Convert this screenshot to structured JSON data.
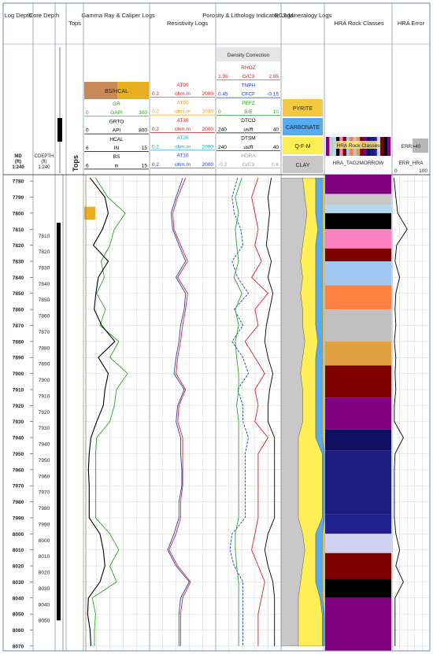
{
  "tracks": {
    "log_depth": "Log Depth",
    "core_depth": "Core Depth",
    "tops": "Tops",
    "gamma": "Gamma Ray & Caliper Logs",
    "resistivity": "Resistivity Logs",
    "porosity": "Porosity & Lithology Indicator Logs",
    "ecs": "ECS Mineralogy Logs",
    "hra": "HRA Rock Classes",
    "hra_error": "HRA Error"
  },
  "depth_header": {
    "md": "MD",
    "md_unit": "(ft)",
    "md_scale": "1:240",
    "cdepth": "CDEPTH",
    "cdepth_unit": "(ft)",
    "cdepth_scale": "1:240",
    "tops_vertical": "Tops"
  },
  "gamma_header": {
    "bs_hcal": "BS/HCAL",
    "rows": [
      {
        "name": "GR",
        "left": "",
        "unit": "",
        "right": "",
        "color": "#2aa52a"
      },
      {
        "name": "",
        "left": "0",
        "unit": "GAPI",
        "right": "300",
        "color": "#2aa52a"
      },
      {
        "name": "GRTO",
        "left": "",
        "unit": "",
        "right": "",
        "color": "#000000"
      },
      {
        "name": "",
        "left": "0",
        "unit": "API",
        "right": "800",
        "color": "#000000"
      },
      {
        "name": "HCAL",
        "left": "",
        "unit": "",
        "right": "",
        "color": "#000000"
      },
      {
        "name": "",
        "left": "6",
        "unit": "IN",
        "right": "15",
        "color": "#000000"
      },
      {
        "name": "BS",
        "left": "",
        "unit": "",
        "right": "",
        "color": "#000000"
      },
      {
        "name": "",
        "left": "6",
        "unit": "in",
        "right": "15",
        "color": "#000000"
      }
    ]
  },
  "resistivity_header": {
    "rows": [
      {
        "name": "AT90",
        "left": "",
        "unit": "",
        "right": "",
        "color": "#e02020"
      },
      {
        "name": "",
        "left": "0.2",
        "unit": "ohm.m",
        "right": "2000",
        "color": "#e02020"
      },
      {
        "name": "AT60",
        "left": "",
        "unit": "",
        "right": "",
        "color": "#f0a020"
      },
      {
        "name": "",
        "left": "0.2",
        "unit": "ohm.m",
        "right": "2000",
        "color": "#f0a020"
      },
      {
        "name": "AT30",
        "left": "",
        "unit": "",
        "right": "",
        "color": "#c02020"
      },
      {
        "name": "",
        "left": "0.2",
        "unit": "ohm.m",
        "right": "2000",
        "color": "#c02020"
      },
      {
        "name": "AT20",
        "left": "",
        "unit": "",
        "right": "",
        "color": "#20a0d0"
      },
      {
        "name": "",
        "left": "0.2",
        "unit": "ohm.m",
        "right": "2000",
        "color": "#20a0d0"
      },
      {
        "name": "AT10",
        "left": "",
        "unit": "",
        "right": "",
        "color": "#2040c0"
      },
      {
        "name": "",
        "left": "0.2",
        "unit": "ohm.m",
        "right": "2000",
        "color": "#2040c0"
      }
    ]
  },
  "porosity_header": {
    "density_correction": "Density Correction",
    "rows": [
      {
        "name": "RHOZ",
        "left": "",
        "unit": "",
        "right": "",
        "color": "#e02020"
      },
      {
        "name": "",
        "left": "1.95",
        "unit": "G/C3",
        "right": "2.95",
        "color": "#e02020"
      },
      {
        "name": "TNPH",
        "left": "",
        "unit": "",
        "right": "",
        "color": "#2040c0"
      },
      {
        "name": "",
        "left": "0.45",
        "unit": "CFCF",
        "right": "-0.15",
        "color": "#2040c0"
      },
      {
        "name": "PEFZ",
        "left": "",
        "unit": "",
        "right": "",
        "color": "#2aa52a"
      },
      {
        "name": "",
        "left": "0",
        "unit": "B/E",
        "right": "10",
        "color": "#2aa52a"
      },
      {
        "name": "DTCO",
        "left": "",
        "unit": "",
        "right": "",
        "color": "#000000"
      },
      {
        "name": "",
        "left": "240",
        "unit": "us/ft",
        "right": "40",
        "color": "#000000"
      },
      {
        "name": "DTSM",
        "left": "",
        "unit": "",
        "right": "",
        "color": "#000000"
      },
      {
        "name": "",
        "left": "240",
        "unit": "us/ft",
        "right": "40",
        "color": "#000000"
      },
      {
        "name": "HDRA",
        "left": "",
        "unit": "",
        "right": "",
        "color": "#999999"
      },
      {
        "name": "",
        "left": "-0.2",
        "unit": "G/C3",
        "right": "0.6",
        "color": "#999999"
      }
    ]
  },
  "ecs_header": {
    "pyrite": "PYRITE",
    "carbonate": "CARBONATE",
    "qfm": "Q-F-M",
    "clay": "CLAY"
  },
  "hra_header": {
    "legend_label": "HRA Rock Classes",
    "curve": "HRA_TAG2MORROW"
  },
  "hra_error_header": {
    "flag": "ERR>40",
    "curve": "ERR_HRA",
    "left": "0",
    "right": "100"
  },
  "colors": {
    "gr": "#2aa52a",
    "grto": "#000000",
    "at90": "#e02020",
    "at60": "#f0a020",
    "at30": "#c02020",
    "at20": "#20a0d0",
    "at10": "#2040c0",
    "rhoz": "#e02020",
    "tnph": "#2040c0",
    "pefz": "#2aa52a",
    "pyrite": "#f5c842",
    "carbonate": "#5aaaf0",
    "qfm": "#ffee55",
    "clay": "#c8c8c8",
    "caliper_fill": "#e8b020"
  },
  "chart_data": {
    "type": "line",
    "depth_axis": {
      "label": "MD (ft)",
      "range": [
        7776,
        8073
      ],
      "ticks": [
        7780,
        7790,
        7800,
        7810,
        7820,
        7830,
        7840,
        7850,
        7860,
        7870,
        7880,
        7890,
        7900,
        7910,
        7920,
        7930,
        7940,
        7950,
        7960,
        7970,
        7980,
        7990,
        8000,
        8010,
        8020,
        8030,
        8040,
        8050,
        8060,
        8070
      ]
    },
    "core_depth_ticks": [
      7810,
      7820,
      7830,
      7840,
      7850,
      7860,
      7870,
      7880,
      7890,
      7900,
      7910,
      7920,
      7930,
      7940,
      7950,
      7960,
      7970,
      7980,
      7990,
      8000,
      8010,
      8020,
      8030,
      8040,
      8050
    ],
    "depth": [
      7778,
      7790,
      7800,
      7810,
      7820,
      7830,
      7840,
      7850,
      7860,
      7870,
      7880,
      7890,
      7900,
      7910,
      7920,
      7930,
      7940,
      7950,
      7960,
      7970,
      7980,
      7990,
      8000,
      8010,
      8020,
      8030,
      8040,
      8050,
      8060,
      8070
    ],
    "series": [
      {
        "name": "GR",
        "track": "gamma",
        "scale": [
          0,
          300
        ],
        "values": [
          55,
          110,
          190,
          140,
          120,
          80,
          95,
          60,
          100,
          75,
          160,
          120,
          200,
          150,
          140,
          120,
          60,
          55,
          55,
          55,
          55,
          55,
          120,
          160,
          120,
          150,
          40,
          55,
          50,
          50
        ]
      },
      {
        "name": "GRTO",
        "track": "gamma",
        "scale": [
          0,
          800
        ],
        "values": [
          80,
          260,
          300,
          230,
          120,
          300,
          180,
          150,
          130,
          220,
          380,
          180,
          300,
          260,
          240,
          160,
          90,
          70,
          60,
          70,
          70,
          70,
          200,
          240,
          260,
          200,
          60,
          50,
          80,
          90
        ]
      },
      {
        "name": "AT90",
        "track": "resistivity",
        "scale": [
          0.2,
          2000
        ],
        "log": true,
        "values": [
          30,
          10,
          5,
          6,
          15,
          40,
          10,
          40,
          30,
          20,
          15,
          10,
          8,
          30,
          12,
          10,
          20,
          20,
          20,
          20,
          15,
          15,
          8,
          3,
          10,
          60,
          20,
          15,
          15,
          15
        ]
      },
      {
        "name": "AT10",
        "track": "resistivity",
        "scale": [
          0.2,
          2000
        ],
        "log": true,
        "values": [
          20,
          8,
          4,
          5,
          12,
          30,
          8,
          30,
          25,
          15,
          12,
          8,
          6,
          25,
          10,
          8,
          15,
          15,
          18,
          18,
          12,
          12,
          6,
          2.5,
          8,
          50,
          15,
          12,
          12,
          12
        ]
      },
      {
        "name": "RHOZ",
        "track": "porosity",
        "scale": [
          1.95,
          2.95
        ],
        "values": [
          2.6,
          2.5,
          2.55,
          2.6,
          2.55,
          2.65,
          2.5,
          2.75,
          2.55,
          2.6,
          2.4,
          2.55,
          2.7,
          2.55,
          2.6,
          2.55,
          2.75,
          2.6,
          2.6,
          2.6,
          2.6,
          2.6,
          2.55,
          2.5,
          2.6,
          2.7,
          2.65,
          2.6,
          2.6,
          2.6
        ]
      },
      {
        "name": "TNPH",
        "track": "porosity",
        "scale": [
          0.45,
          -0.15
        ],
        "values": [
          0.25,
          0.3,
          0.28,
          0.22,
          0.2,
          0.3,
          0.25,
          0.15,
          0.28,
          0.2,
          0.3,
          0.2,
          0.15,
          0.25,
          0.2,
          0.2,
          0.15,
          0.18,
          0.18,
          0.18,
          0.18,
          0.18,
          0.3,
          0.32,
          0.28,
          0.2,
          0.2,
          0.2,
          0.2,
          0.2
        ]
      },
      {
        "name": "PEFZ",
        "track": "porosity",
        "scale": [
          0,
          10
        ],
        "values": [
          4,
          3,
          3.5,
          3,
          3.2,
          3.5,
          2.8,
          4,
          3,
          3.5,
          3,
          3.2,
          3.5,
          3.5,
          3.2,
          3.5,
          3.5,
          3.5,
          3.5,
          3.5,
          3.5,
          3.5,
          3,
          3,
          3.2,
          3.5,
          3.5,
          3.5,
          3.5,
          3.5
        ]
      },
      {
        "name": "DTCO",
        "track": "porosity",
        "scale": [
          240,
          40
        ],
        "values": [
          70,
          80,
          75,
          80,
          85,
          70,
          80,
          65,
          75,
          85,
          90,
          80,
          65,
          75,
          80,
          80,
          60,
          60,
          60,
          60,
          60,
          60,
          80,
          90,
          80,
          65,
          60,
          60,
          60,
          60
        ]
      },
      {
        "name": "ERR_HRA",
        "track": "hra_error",
        "scale": [
          0,
          100
        ],
        "values": [
          5,
          10,
          15,
          40,
          12,
          8,
          20,
          10,
          8,
          10,
          6,
          10,
          8,
          10,
          6,
          6,
          30,
          8,
          6,
          6,
          6,
          6,
          10,
          20,
          10,
          30,
          8,
          8,
          8,
          8
        ]
      }
    ],
    "hra_classes": [
      {
        "top": 7776,
        "base": 7788,
        "color": "#800080"
      },
      {
        "top": 7788,
        "base": 7795,
        "color": "#c8c8c8"
      },
      {
        "top": 7795,
        "base": 7800,
        "color": "#b0d8f0"
      },
      {
        "top": 7800,
        "base": 7810,
        "color": "#000000"
      },
      {
        "top": 7810,
        "base": 7822,
        "color": "#ff80c0"
      },
      {
        "top": 7822,
        "base": 7830,
        "color": "#800000"
      },
      {
        "top": 7830,
        "base": 7845,
        "color": "#a0c8f0"
      },
      {
        "top": 7845,
        "base": 7860,
        "color": "#ff8040"
      },
      {
        "top": 7860,
        "base": 7880,
        "color": "#c0c0c0"
      },
      {
        "top": 7880,
        "base": 7895,
        "color": "#e0a040"
      },
      {
        "top": 7895,
        "base": 7915,
        "color": "#800000"
      },
      {
        "top": 7915,
        "base": 7935,
        "color": "#800080"
      },
      {
        "top": 7935,
        "base": 7948,
        "color": "#101060"
      },
      {
        "top": 7948,
        "base": 7988,
        "color": "#1c1c80"
      },
      {
        "top": 7988,
        "base": 8000,
        "color": "#202090"
      },
      {
        "top": 8000,
        "base": 8012,
        "color": "#d0d0f0"
      },
      {
        "top": 8012,
        "base": 8028,
        "color": "#800000"
      },
      {
        "top": 8028,
        "base": 8040,
        "color": "#000000"
      },
      {
        "top": 8040,
        "base": 8073,
        "color": "#800080"
      }
    ],
    "ecs_fractions": {
      "clay": [
        0.5,
        0.55,
        0.6,
        0.55,
        0.5,
        0.45,
        0.5,
        0.45,
        0.5,
        0.5,
        0.55,
        0.5,
        0.45,
        0.5,
        0.5,
        0.5,
        0.4,
        0.4,
        0.4,
        0.4,
        0.4,
        0.4,
        0.5,
        0.55,
        0.5,
        0.45,
        0.4,
        0.4,
        0.4,
        0.4
      ],
      "qfm": [
        0.3,
        0.25,
        0.2,
        0.3,
        0.3,
        0.35,
        0.3,
        0.35,
        0.3,
        0.3,
        0.3,
        0.3,
        0.35,
        0.3,
        0.3,
        0.3,
        0.4,
        0.55,
        0.55,
        0.55,
        0.55,
        0.55,
        0.3,
        0.25,
        0.3,
        0.35,
        0.5,
        0.55,
        0.55,
        0.55
      ],
      "carbonate": [
        0.15,
        0.15,
        0.15,
        0.1,
        0.15,
        0.15,
        0.15,
        0.15,
        0.15,
        0.15,
        0.1,
        0.15,
        0.15,
        0.15,
        0.15,
        0.15,
        0.15,
        0.05,
        0.05,
        0.05,
        0.05,
        0.05,
        0.15,
        0.15,
        0.15,
        0.15,
        0.05,
        0.05,
        0.05,
        0.05
      ],
      "pyrite": [
        0.05,
        0.05,
        0.05,
        0.05,
        0.05,
        0.05,
        0.05,
        0.05,
        0.05,
        0.05,
        0.05,
        0.05,
        0.05,
        0.05,
        0.05,
        0.05,
        0.05,
        0,
        0,
        0,
        0,
        0,
        0.05,
        0.05,
        0.05,
        0.05,
        0.05,
        0,
        0,
        0
      ]
    }
  }
}
